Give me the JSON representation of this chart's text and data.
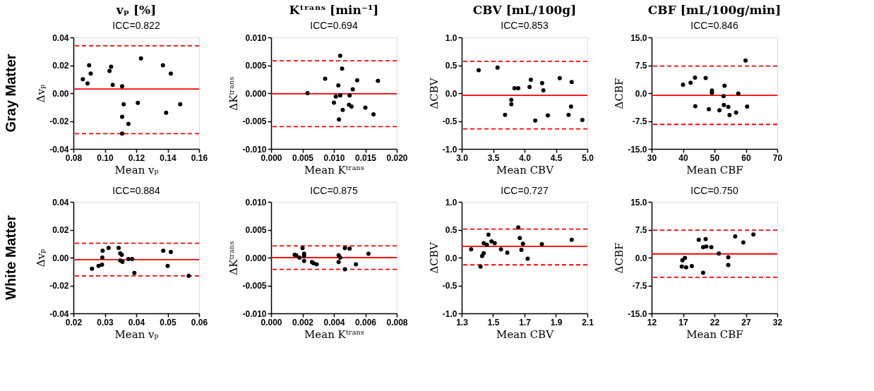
{
  "chart_data": [
    {
      "type": "scatter",
      "title": "vₚ [%]",
      "subtitle": "ICC=0.822",
      "xlabel": "Mean vₚ",
      "ylabel": "Δvₚ",
      "annotations": [
        "Gray Matter"
      ],
      "marker": "circle",
      "x": [
        0.086,
        0.089,
        0.09,
        0.091,
        0.103,
        0.104,
        0.105,
        0.111,
        0.123,
        0.137,
        0.142,
        0.112,
        0.121,
        0.111,
        0.115,
        0.111,
        0.139,
        0.148
      ],
      "series": [
        {
          "color": "#000000",
          "values": [
            0.01,
            0.007,
            0.02,
            0.014,
            0.016,
            0.019,
            0.006,
            0.005,
            0.025,
            0.02,
            0.014,
            -0.008,
            -0.007,
            -0.017,
            -0.022,
            -0.029,
            -0.014,
            -0.008
          ]
        }
      ],
      "xlim": [
        0.08,
        0.16
      ],
      "xticks": [
        0.08,
        {
          "value": 0.1,
          "label": "0.10"
        },
        0.12,
        0.14,
        0.16
      ],
      "ylim": [
        -0.04,
        0.04
      ],
      "yticks": [
        -0.04,
        -0.02,
        {
          "value": 0,
          "label": "0.00"
        },
        0.02,
        0.04
      ],
      "ref_lines": [
        {
          "axis": "y",
          "value": 0.003,
          "color": "#ff0000",
          "line_style": "solid"
        },
        {
          "axis": "y",
          "value": 0.034,
          "color": "#ff0000",
          "line_style": "dashed"
        },
        {
          "axis": "y",
          "value": -0.029,
          "color": "#ff0000",
          "line_style": "dashed"
        }
      ]
    },
    {
      "type": "scatter",
      "title": "Kᵗʳᵃⁿˢ [min⁻¹]",
      "subtitle": "ICC=0.694",
      "xlabel": "Mean Kᵗʳᵃⁿˢ",
      "ylabel": "ΔKᵗʳᵃⁿˢ",
      "marker": "circle",
      "x": [
        0.0058,
        0.0086,
        0.0107,
        0.011,
        0.0113,
        0.0137,
        0.017,
        0.013,
        0.0103,
        0.011,
        0.0125,
        0.01,
        0.0124,
        0.0128,
        0.0114,
        0.015,
        0.0163,
        0.0108
      ],
      "series": [
        {
          "color": "#000000",
          "values": [
            0.0,
            0.0026,
            0.0014,
            0.0067,
            0.0044,
            0.0023,
            0.0022,
            0.0007,
            -0.0006,
            -0.0004,
            -0.0004,
            -0.0017,
            -0.0021,
            -0.0024,
            -0.003,
            -0.0026,
            -0.0038,
            -0.0047
          ]
        }
      ],
      "xlim": [
        0,
        0.02
      ],
      "xticks": [
        {
          "value": 0,
          "label": "0.000"
        },
        0.005,
        {
          "value": 0.01,
          "label": "0.010"
        },
        0.015,
        {
          "value": 0.02,
          "label": "0.020"
        }
      ],
      "ylim": [
        -0.01,
        0.01
      ],
      "yticks": [
        {
          "value": -0.01,
          "label": "-0.010"
        },
        -0.005,
        {
          "value": 0,
          "label": "0.000"
        },
        0.005,
        {
          "value": 0.01,
          "label": "0.010"
        }
      ],
      "ref_lines": [
        {
          "axis": "y",
          "value": -0.0001,
          "color": "#ff0000",
          "line_style": "solid"
        },
        {
          "axis": "y",
          "value": 0.0058,
          "color": "#ff0000",
          "line_style": "dashed"
        },
        {
          "axis": "y",
          "value": -0.006,
          "color": "#ff0000",
          "line_style": "dashed"
        }
      ]
    },
    {
      "type": "scatter",
      "title": "CBV [mL/100g]",
      "subtitle": "ICC=0.853",
      "xlabel": "Mean CBV",
      "ylabel": "ΔCBV",
      "marker": "circle",
      "x": [
        3.27,
        3.57,
        3.69,
        3.79,
        3.79,
        3.84,
        3.9,
        4.08,
        4.1,
        4.17,
        4.28,
        4.3,
        4.37,
        4.56,
        4.7,
        4.74,
        4.75,
        4.92
      ],
      "series": [
        {
          "color": "#000000",
          "values": [
            0.41,
            0.46,
            -0.39,
            -0.12,
            -0.2,
            0.09,
            0.09,
            0.11,
            0.24,
            -0.49,
            0.18,
            0.05,
            -0.4,
            0.27,
            -0.39,
            -0.24,
            0.2,
            -0.48
          ]
        }
      ],
      "xlim": [
        3,
        5
      ],
      "xticks": [
        {
          "value": 3,
          "label": "3.0"
        },
        3.5,
        {
          "value": 4,
          "label": "4.0"
        },
        4.5,
        {
          "value": 5,
          "label": "5.0"
        }
      ],
      "ylim": [
        -1,
        1
      ],
      "yticks": [
        {
          "value": -1,
          "label": "-1.0"
        },
        -0.5,
        {
          "value": 0,
          "label": "0.0"
        },
        0.5,
        {
          "value": 1,
          "label": "1.0"
        }
      ],
      "ref_lines": [
        {
          "axis": "y",
          "value": -0.04,
          "color": "#ff0000",
          "line_style": "solid"
        },
        {
          "axis": "y",
          "value": 0.57,
          "color": "#ff0000",
          "line_style": "dashed"
        },
        {
          "axis": "y",
          "value": -0.64,
          "color": "#ff0000",
          "line_style": "dashed"
        }
      ]
    },
    {
      "type": "scatter",
      "title": "CBF [mL/100g/min]",
      "subtitle": "ICC=0.846",
      "xlabel": "Mean CBF",
      "ylabel": "ΔCBF",
      "marker": "circle",
      "x": [
        40.0,
        42.4,
        43.8,
        47.2,
        49.2,
        49.2,
        53.2,
        52.9,
        57.6,
        59.9,
        43.9,
        48.2,
        51.6,
        53.0,
        54.4,
        54.8,
        56.9,
        60.4
      ],
      "series": [
        {
          "color": "#000000",
          "values": [
            2.3,
            2.8,
            4.2,
            4.1,
            0.7,
            0.1,
            2.0,
            -0.8,
            -0.1,
            8.8,
            -3.5,
            -4.3,
            -4.6,
            -3.2,
            -3.7,
            -5.9,
            -5.2,
            -3.6
          ]
        }
      ],
      "xlim": [
        30,
        70
      ],
      "xticks": [
        30,
        40,
        50,
        60,
        70
      ],
      "ylim": [
        -15,
        15
      ],
      "yticks": [
        {
          "value": -15,
          "label": "-15.0"
        },
        -7.5,
        {
          "value": 0,
          "label": "0.0"
        },
        7.5,
        {
          "value": 15,
          "label": "15.0"
        }
      ],
      "ref_lines": [
        {
          "axis": "y",
          "value": -0.6,
          "color": "#ff0000",
          "line_style": "solid"
        },
        {
          "axis": "y",
          "value": 7.3,
          "color": "#ff0000",
          "line_style": "dashed"
        },
        {
          "axis": "y",
          "value": -8.4,
          "color": "#ff0000",
          "line_style": "dashed"
        }
      ]
    },
    {
      "type": "scatter",
      "title": "ICC=0.884",
      "xlabel": "Mean vₚ",
      "ylabel": "Δvₚ",
      "annotations": [
        "White Matter"
      ],
      "marker": "circle",
      "x": [
        0.0259,
        0.028,
        0.0291,
        0.0292,
        0.0293,
        0.0312,
        0.0344,
        0.0349,
        0.0354,
        0.0349,
        0.0356,
        0.0375,
        0.0387,
        0.0394,
        0.0486,
        0.051,
        0.05,
        0.0567
      ],
      "series": [
        {
          "color": "#000000",
          "values": [
            -0.008,
            -0.006,
            -0.005,
            0.0,
            0.005,
            0.007,
            0.007,
            0.003,
            0.002,
            -0.002,
            -0.003,
            -0.001,
            -0.001,
            -0.011,
            0.005,
            0.004,
            -0.006,
            -0.013
          ]
        }
      ],
      "xlim": [
        0.02,
        0.06
      ],
      "xticks": [
        0.02,
        0.03,
        0.04,
        0.05,
        0.06
      ],
      "ylim": [
        -0.04,
        0.04
      ],
      "yticks": [
        -0.04,
        -0.02,
        {
          "value": 0,
          "label": "0.00"
        },
        0.02,
        0.04
      ],
      "ref_lines": [
        {
          "axis": "y",
          "value": -0.0015,
          "color": "#ff0000",
          "line_style": "solid"
        },
        {
          "axis": "y",
          "value": 0.0103,
          "color": "#ff0000",
          "line_style": "dashed"
        },
        {
          "axis": "y",
          "value": -0.0131,
          "color": "#ff0000",
          "line_style": "dashed"
        }
      ]
    },
    {
      "type": "scatter",
      "title": "ICC=0.875",
      "xlabel": "Mean Kᵗʳᵃⁿˢ",
      "ylabel": "ΔKᵗʳᵃⁿˢ",
      "marker": "circle",
      "x": [
        0.0015,
        0.0016,
        0.0018,
        0.002,
        0.0021,
        0.0021,
        0.0021,
        0.0026,
        0.0027,
        0.0029,
        0.0043,
        0.0044,
        0.0043,
        0.0047,
        0.005,
        0.0047,
        0.0054,
        0.0062
      ],
      "series": [
        {
          "color": "#000000",
          "values": [
            0.0005,
            0.0004,
            0.0,
            0.0017,
            0.0007,
            0.0003,
            -0.0006,
            -0.0008,
            -0.001,
            -0.0012,
            0.0004,
            0.0,
            -0.0008,
            0.0017,
            0.0016,
            -0.0021,
            -0.0012,
            0.0007
          ]
        }
      ],
      "xlim": [
        0,
        0.008
      ],
      "xticks": [
        {
          "value": 0,
          "label": "0.000"
        },
        0.002,
        0.004,
        0.006,
        0.008
      ],
      "ylim": [
        -0.01,
        0.01
      ],
      "yticks": [
        {
          "value": -0.01,
          "label": "-0.010"
        },
        -0.005,
        {
          "value": 0,
          "label": "0.000"
        },
        0.005,
        {
          "value": 0.01,
          "label": "0.010"
        }
      ],
      "ref_lines": [
        {
          "axis": "y",
          "value": 0.0,
          "color": "#ff0000",
          "line_style": "solid"
        },
        {
          "axis": "y",
          "value": 0.0021,
          "color": "#ff0000",
          "line_style": "dashed"
        },
        {
          "axis": "y",
          "value": -0.0021,
          "color": "#ff0000",
          "line_style": "dashed"
        }
      ]
    },
    {
      "type": "scatter",
      "title": "ICC=0.727",
      "xlabel": "Mean CBV",
      "ylabel": "ΔCBV",
      "marker": "circle",
      "x": [
        1.36,
        1.43,
        1.42,
        1.44,
        1.44,
        1.46,
        1.47,
        1.49,
        1.51,
        1.55,
        1.59,
        1.66,
        1.67,
        1.68,
        1.69,
        1.72,
        1.81,
        2.0
      ],
      "series": [
        {
          "color": "#000000",
          "values": [
            0.15,
            0.03,
            -0.16,
            0.08,
            0.26,
            0.23,
            0.41,
            0.29,
            0.26,
            0.15,
            0.09,
            0.54,
            0.35,
            0.14,
            0.25,
            -0.02,
            0.24,
            0.32
          ]
        }
      ],
      "xlim": [
        1.3,
        2.1
      ],
      "xticks": [
        1.3,
        1.5,
        1.7,
        1.9,
        2.1
      ],
      "ylim": [
        -1,
        1
      ],
      "yticks": [
        {
          "value": -1,
          "label": "-1.0"
        },
        -0.5,
        {
          "value": 0,
          "label": "0.0"
        },
        0.5,
        {
          "value": 1,
          "label": "1.0"
        }
      ],
      "ref_lines": [
        {
          "axis": "y",
          "value": 0.2,
          "color": "#ff0000",
          "line_style": "solid"
        },
        {
          "axis": "y",
          "value": 0.51,
          "color": "#ff0000",
          "line_style": "dashed"
        },
        {
          "axis": "y",
          "value": -0.13,
          "color": "#ff0000",
          "line_style": "dashed"
        }
      ]
    },
    {
      "type": "scatter",
      "title": "ICC=0.750",
      "xlabel": "Mean CBF",
      "ylabel": "ΔCBF",
      "marker": "circle",
      "x": [
        16.8,
        16.9,
        17.3,
        17.5,
        18.4,
        19.5,
        20.2,
        20.6,
        20.7,
        20.2,
        21.5,
        22.7,
        24.2,
        24.2,
        25.3,
        26.6,
        28.2
      ],
      "series": [
        {
          "color": "#000000",
          "values": [
            -2.4,
            -0.7,
            -0.1,
            -2.6,
            -2.3,
            4.8,
            2.8,
            5.0,
            3.0,
            -4.1,
            2.8,
            1.1,
            0.1,
            -2.0,
            5.7,
            4.1,
            6.2
          ]
        }
      ],
      "xlim": [
        12,
        32
      ],
      "xticks": [
        12,
        17,
        22,
        27,
        32
      ],
      "ylim": [
        -15,
        15
      ],
      "yticks": [
        {
          "value": -15,
          "label": "-15.0"
        },
        -7.5,
        {
          "value": 0,
          "label": "0.0"
        },
        7.5,
        {
          "value": 15,
          "label": "15.0"
        }
      ],
      "ref_lines": [
        {
          "axis": "y",
          "value": 1.0,
          "color": "#ff0000",
          "line_style": "solid"
        },
        {
          "axis": "y",
          "value": 7.4,
          "color": "#ff0000",
          "line_style": "dashed"
        },
        {
          "axis": "y",
          "value": -5.3,
          "color": "#ff0000",
          "line_style": "dashed"
        }
      ]
    }
  ]
}
